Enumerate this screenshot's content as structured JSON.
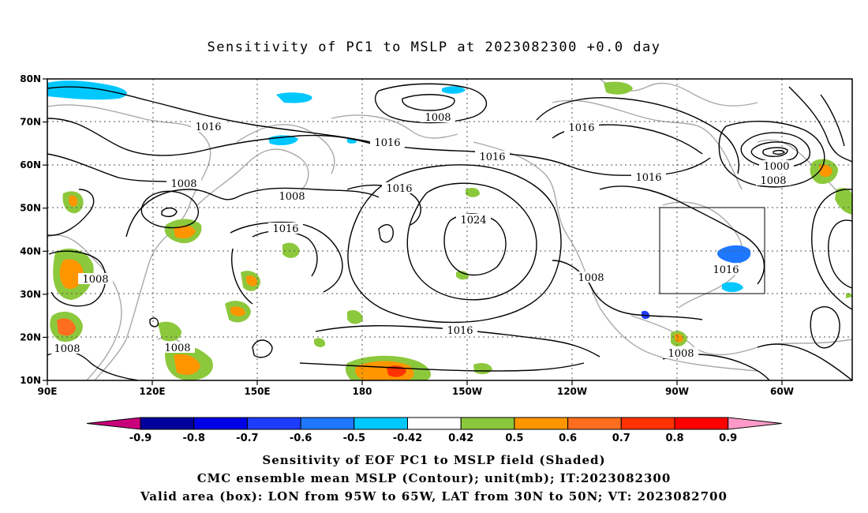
{
  "title": "Sensitivity of PC1 to MSLP at 2023082300 +0.0 day",
  "axes": {
    "lon_ticks": [
      "90E",
      "120E",
      "150E",
      "180",
      "150W",
      "120W",
      "90W",
      "60W"
    ],
    "lat_ticks": [
      "80N",
      "70N",
      "60N",
      "50N",
      "40N",
      "30N",
      "20N",
      "10N"
    ]
  },
  "colorbar": {
    "labels": [
      "-0.9",
      "-0.8",
      "-0.7",
      "-0.6",
      "-0.5",
      "-0.42",
      "0.42",
      "0.5",
      "0.6",
      "0.7",
      "0.8",
      "0.9"
    ],
    "colors": {
      "below": "#c8007a",
      "bins": [
        "#00009a",
        "#0000e6",
        "#1e3cff",
        "#1e78ff",
        "#00c8ff",
        "#ffffff",
        "#8cc83c",
        "#ff9600",
        "#ff6e1e",
        "#ff3200",
        "#ff0000"
      ],
      "above": "#ff9ac8"
    }
  },
  "isobar_labels": {
    "l1": "1016",
    "l2": "1008",
    "l3": "1016",
    "l4": "1016",
    "l5": "1016",
    "l6": "1008",
    "l7": "1008",
    "l8": "1016",
    "l9": "1016",
    "l10": "1024",
    "l11": "1016",
    "l12": "1008",
    "l13": "1016",
    "l14": "1000",
    "l15": "1008",
    "l16": "1008",
    "l17": "1008",
    "l18": "1008",
    "l19": "1016"
  },
  "footer": {
    "line1": "Sensitivity of EOF PC1 to MSLP field (Shaded)",
    "line2": "CMC ensemble mean MSLP (Contour); unit(mb); IT:2023082300",
    "line3": "Valid area (box): LON from 95W to 65W, LAT from 30N to 50N; VT: 2023082700"
  }
}
